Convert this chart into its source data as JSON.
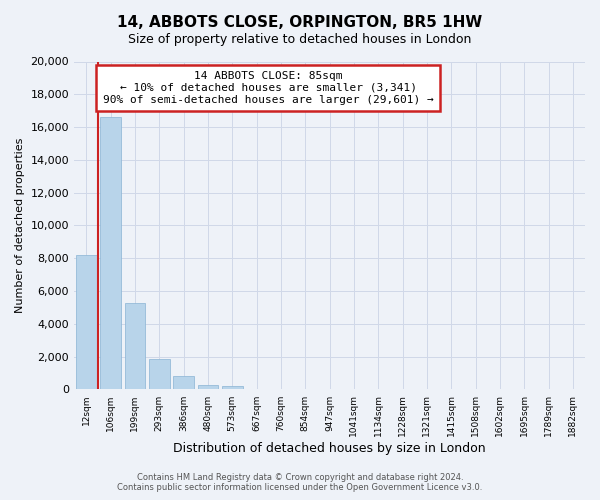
{
  "title": "14, ABBOTS CLOSE, ORPINGTON, BR5 1HW",
  "subtitle": "Size of property relative to detached houses in London",
  "xlabel": "Distribution of detached houses by size in London",
  "ylabel": "Number of detached properties",
  "bar_labels": [
    "12sqm",
    "106sqm",
    "199sqm",
    "293sqm",
    "386sqm",
    "480sqm",
    "573sqm",
    "667sqm",
    "760sqm",
    "854sqm",
    "947sqm",
    "1041sqm",
    "1134sqm",
    "1228sqm",
    "1321sqm",
    "1415sqm",
    "1508sqm",
    "1602sqm",
    "1695sqm",
    "1789sqm",
    "1882sqm"
  ],
  "bar_values": [
    8200,
    16600,
    5300,
    1850,
    800,
    300,
    200,
    0,
    0,
    0,
    0,
    0,
    0,
    0,
    0,
    0,
    0,
    0,
    0,
    0,
    0
  ],
  "bar_color": "#b8d4ea",
  "highlight_color": "#cc2222",
  "ylim": [
    0,
    20000
  ],
  "yticks": [
    0,
    2000,
    4000,
    6000,
    8000,
    10000,
    12000,
    14000,
    16000,
    18000,
    20000
  ],
  "annotation_title": "14 ABBOTS CLOSE: 85sqm",
  "annotation_line1": "← 10% of detached houses are smaller (3,341)",
  "annotation_line2": "90% of semi-detached houses are larger (29,601) →",
  "annotation_box_color": "#ffffff",
  "annotation_box_edge": "#cc2222",
  "footer_line1": "Contains HM Land Registry data © Crown copyright and database right 2024.",
  "footer_line2": "Contains public sector information licensed under the Open Government Licence v3.0.",
  "bg_color": "#eef2f8",
  "grid_color": "#d0d8e8"
}
